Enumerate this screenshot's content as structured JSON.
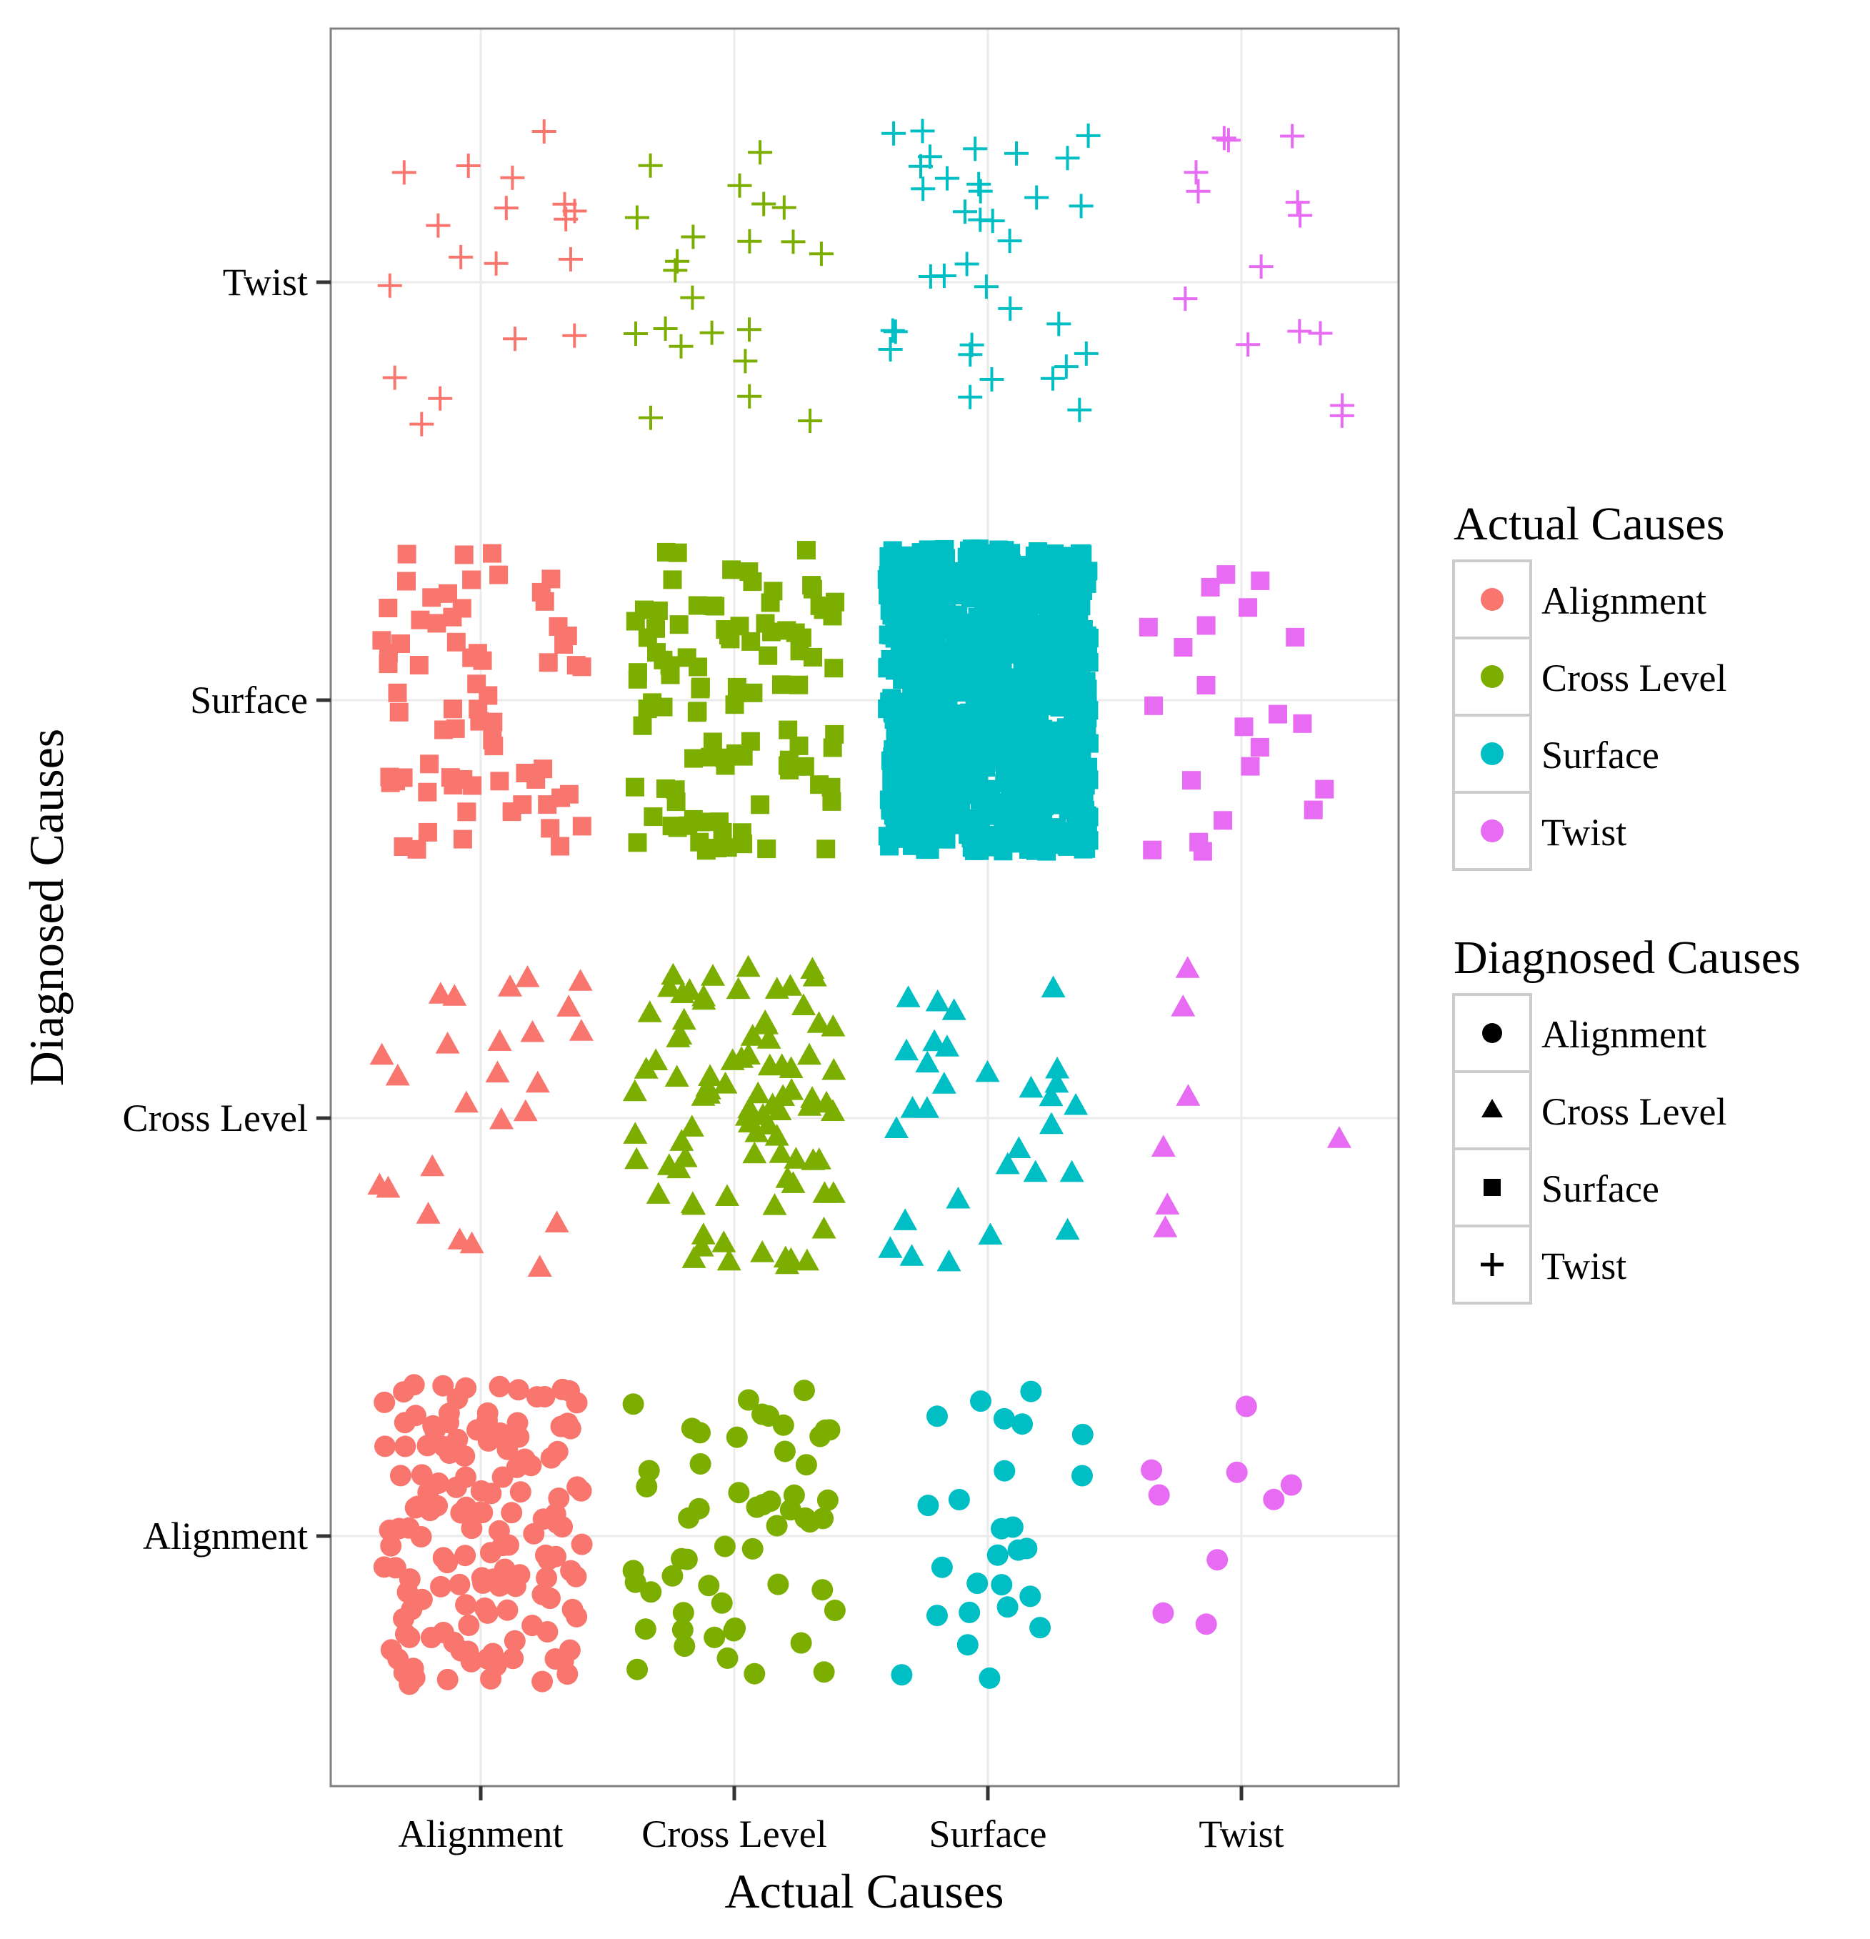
{
  "chart_data": {
    "type": "scatter",
    "subtype": "jittered categorical scatter",
    "xlabel": "Actual Causes",
    "ylabel": "Diagnosed Causes",
    "x_categories": [
      "Alignment",
      "Cross Level",
      "Surface",
      "Twist"
    ],
    "y_categories": [
      "Alignment",
      "Cross Level",
      "Surface",
      "Twist"
    ],
    "grid": true,
    "legend_position": "right",
    "legends": [
      {
        "title": "Actual Causes",
        "kind": "color",
        "items": [
          {
            "label": "Alignment",
            "color": "#F8766D"
          },
          {
            "label": "Cross Level",
            "color": "#7CAE00"
          },
          {
            "label": "Surface",
            "color": "#00BFC4"
          },
          {
            "label": "Twist",
            "color": "#E76BF3"
          }
        ]
      },
      {
        "title": "Diagnosed Causes",
        "kind": "shape",
        "items": [
          {
            "label": "Alignment",
            "shape": "circle"
          },
          {
            "label": "Cross Level",
            "shape": "triangle"
          },
          {
            "label": "Surface",
            "shape": "square"
          },
          {
            "label": "Twist",
            "shape": "plus"
          }
        ]
      }
    ],
    "colors": {
      "Alignment": "#F8766D",
      "Cross Level": "#7CAE00",
      "Surface": "#00BFC4",
      "Twist": "#E76BF3"
    },
    "shapes": {
      "Alignment": "circle",
      "Cross Level": "triangle",
      "Surface": "square",
      "Twist": "plus"
    },
    "cells": [
      {
        "actual": "Alignment",
        "diagnosed": "Alignment",
        "count": 150
      },
      {
        "actual": "Alignment",
        "diagnosed": "Cross Level",
        "count": 25
      },
      {
        "actual": "Alignment",
        "diagnosed": "Surface",
        "count": 70
      },
      {
        "actual": "Alignment",
        "diagnosed": "Twist",
        "count": 18
      },
      {
        "actual": "Cross Level",
        "diagnosed": "Alignment",
        "count": 55
      },
      {
        "actual": "Cross Level",
        "diagnosed": "Cross Level",
        "count": 90
      },
      {
        "actual": "Cross Level",
        "diagnosed": "Surface",
        "count": 100
      },
      {
        "actual": "Cross Level",
        "diagnosed": "Twist",
        "count": 22
      },
      {
        "actual": "Surface",
        "diagnosed": "Alignment",
        "count": 26
      },
      {
        "actual": "Surface",
        "diagnosed": "Cross Level",
        "count": 30
      },
      {
        "actual": "Surface",
        "diagnosed": "Surface",
        "count": 1000
      },
      {
        "actual": "Surface",
        "diagnosed": "Twist",
        "count": 35
      },
      {
        "actual": "Twist",
        "diagnosed": "Alignment",
        "count": 9
      },
      {
        "actual": "Twist",
        "diagnosed": "Cross Level",
        "count": 7
      },
      {
        "actual": "Twist",
        "diagnosed": "Surface",
        "count": 22
      },
      {
        "actual": "Twist",
        "diagnosed": "Twist",
        "count": 14
      }
    ]
  }
}
